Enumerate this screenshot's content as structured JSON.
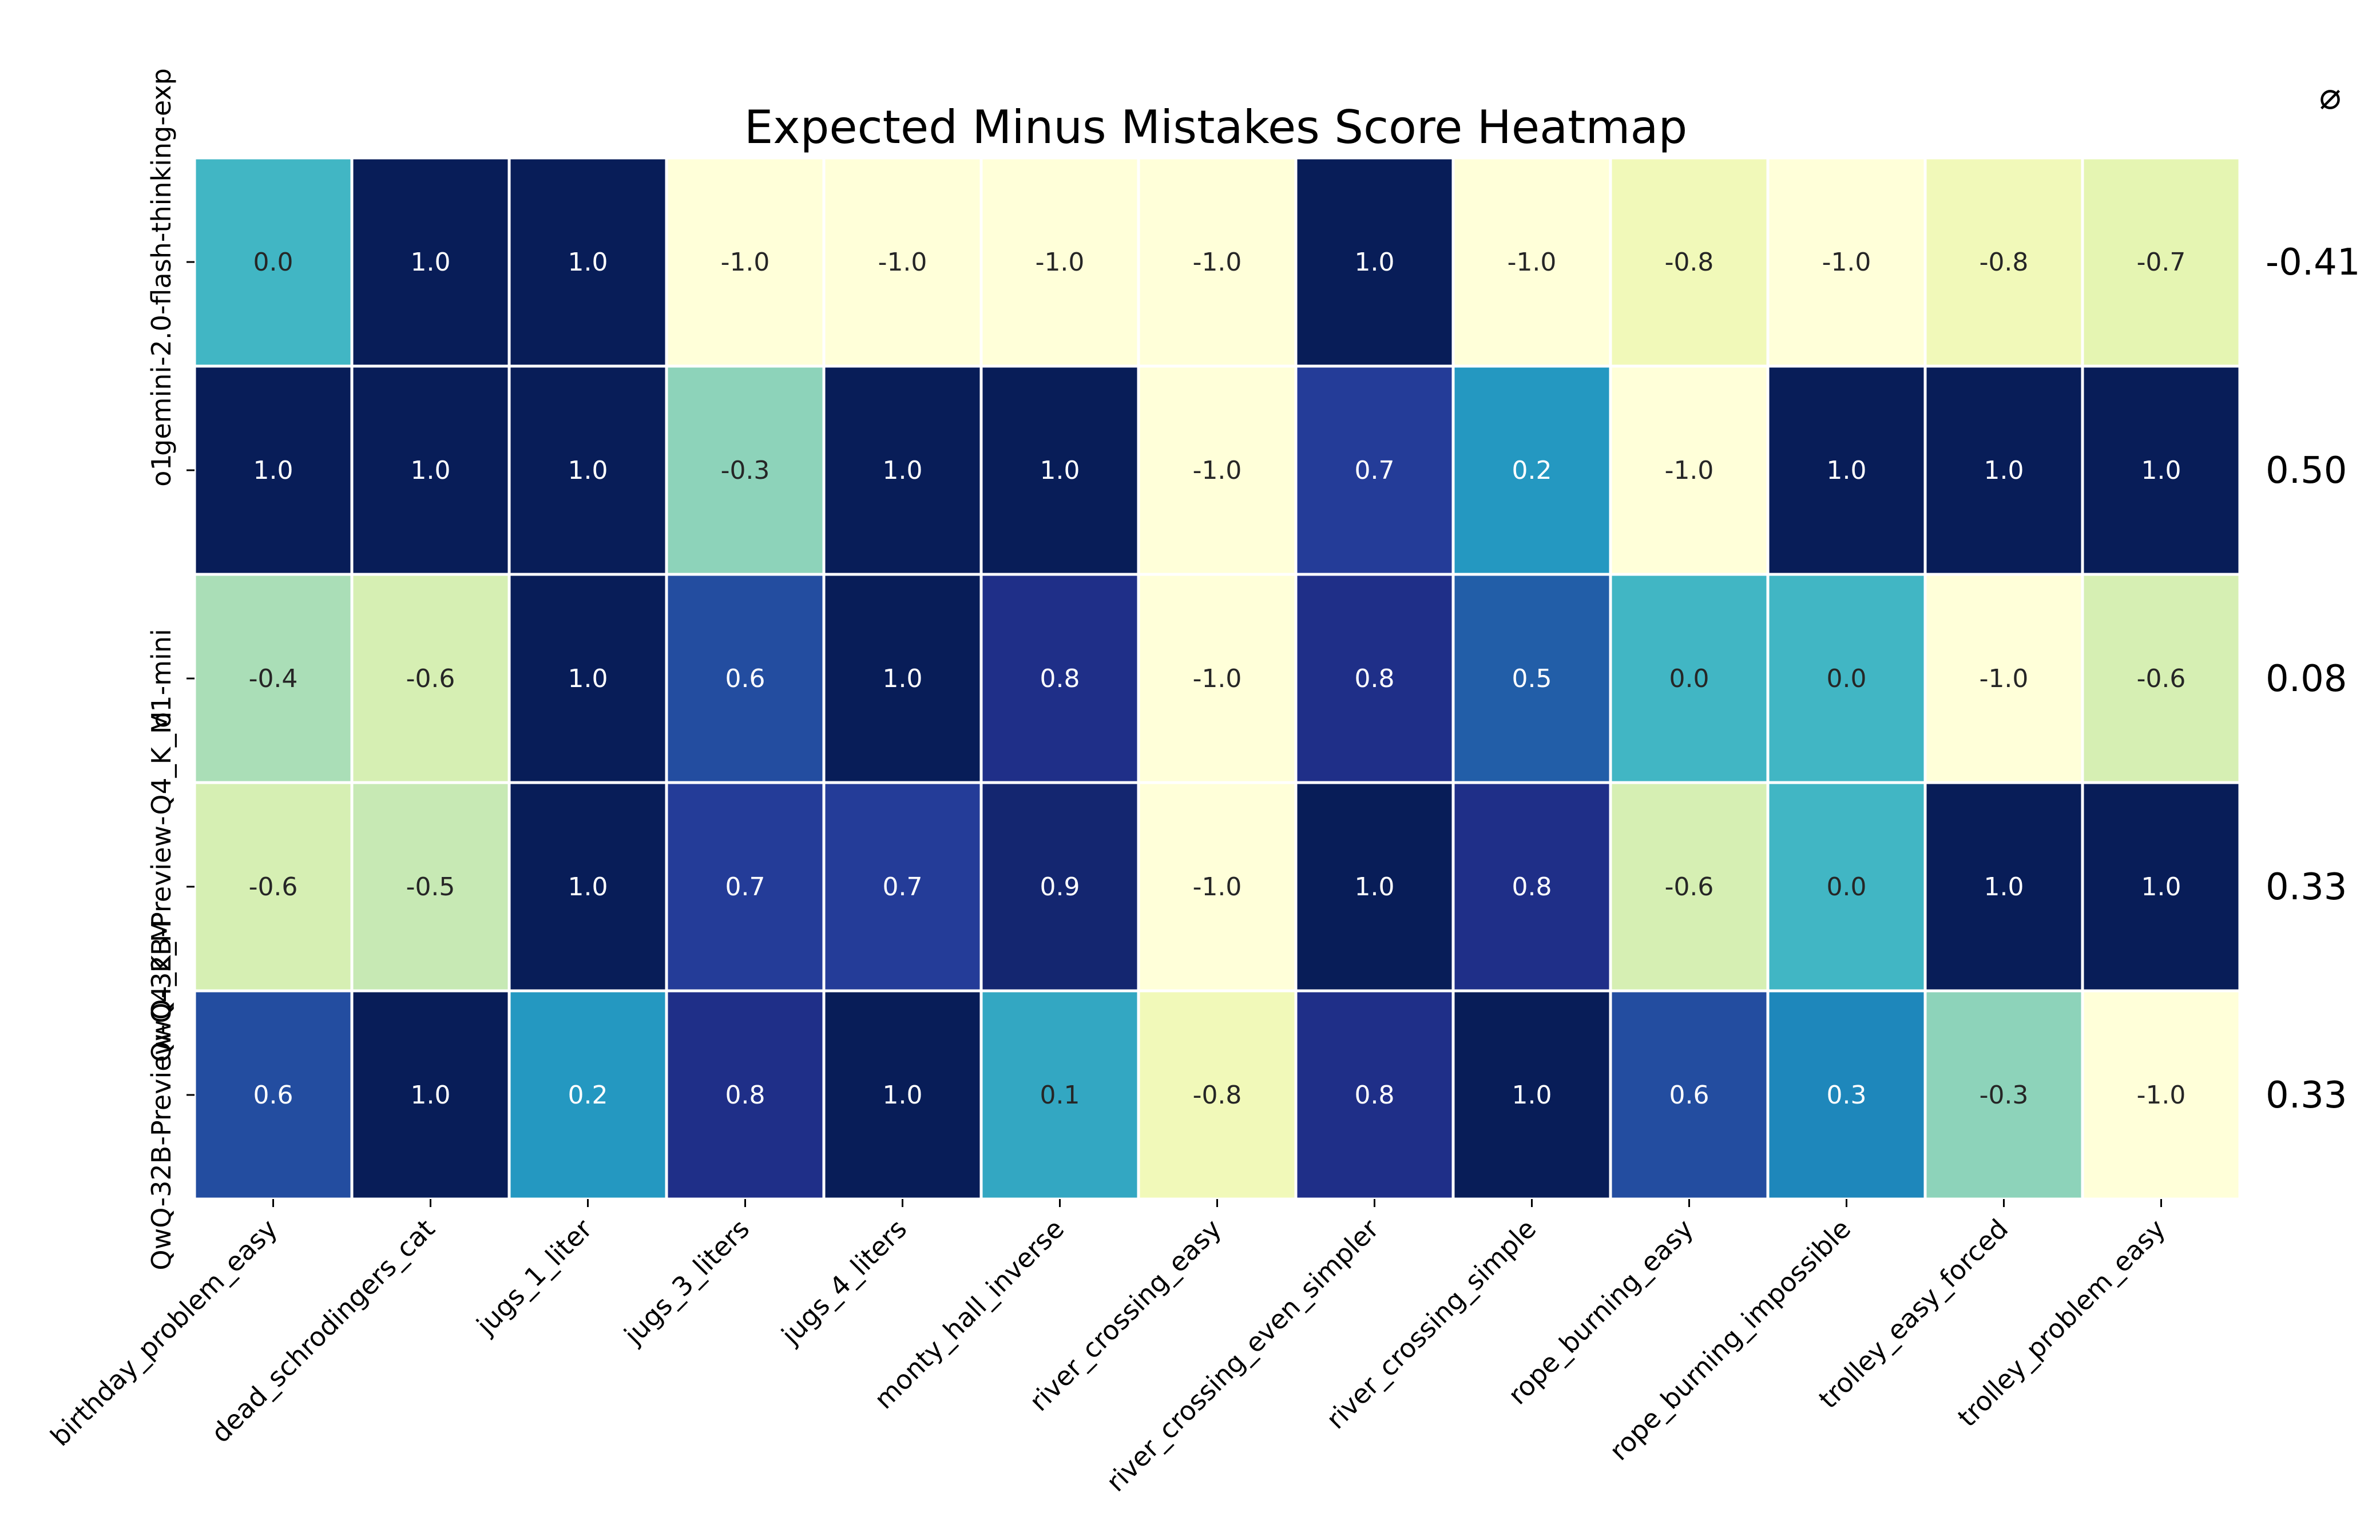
{
  "chart_data": {
    "type": "heatmap",
    "title": "Expected Minus Mistakes Score Heatmap",
    "columns": [
      "birthday_problem_easy",
      "dead_schrodingers_cat",
      "jugs_1_liter",
      "jugs_3_liters",
      "jugs_4_liters",
      "monty_hall_inverse",
      "river_crossing_easy",
      "river_crossing_even_simpler",
      "river_crossing_simple",
      "rope_burning_easy",
      "rope_burning_impossible",
      "trolley_easy_forced",
      "trolley_problem_easy"
    ],
    "rows": [
      "gemini-2.0-flash-thinking-exp",
      "o1",
      "o1-mini",
      "QwQ-32B-Preview-Q4_K_M",
      "QwQ-32B-Preview-Q4_K_M"
    ],
    "values": [
      [
        0.0,
        1.0,
        1.0,
        -1.0,
        -1.0,
        -1.0,
        -1.0,
        1.0,
        -1.0,
        -0.8,
        -1.0,
        -0.8,
        -0.7
      ],
      [
        1.0,
        1.0,
        1.0,
        -0.3,
        1.0,
        1.0,
        -1.0,
        0.7,
        0.2,
        -1.0,
        1.0,
        1.0,
        1.0
      ],
      [
        -0.4,
        -0.6,
        1.0,
        0.6,
        1.0,
        0.8,
        -1.0,
        0.8,
        0.5,
        0.0,
        0.0,
        -1.0,
        -0.6
      ],
      [
        -0.6,
        -0.5,
        1.0,
        0.7,
        0.7,
        0.9,
        -1.0,
        1.0,
        0.8,
        -0.6,
        0.0,
        1.0,
        1.0
      ],
      [
        0.6,
        1.0,
        0.2,
        0.8,
        1.0,
        0.1,
        -0.8,
        0.8,
        1.0,
        0.6,
        0.3,
        -0.3,
        -1.0
      ]
    ],
    "averages_header": "⌀",
    "averages": [
      "-0.41",
      "0.50",
      "0.08",
      "0.33",
      "0.33"
    ],
    "value_range": [
      -1,
      1
    ],
    "colormap": "YlGnBu",
    "colormap_stops": [
      "#ffffd9",
      "#edf8b1",
      "#c7e9b4",
      "#7fcdbb",
      "#41b6c4",
      "#1d91c0",
      "#225ea8",
      "#253494",
      "#081d58"
    ]
  }
}
